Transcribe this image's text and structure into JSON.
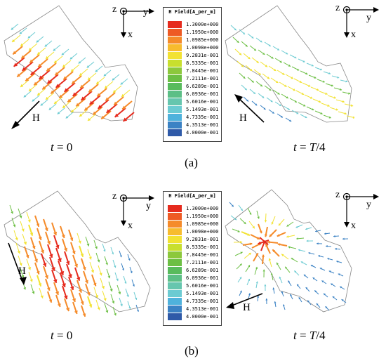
{
  "legend": {
    "title": "H Field[A_per_m]",
    "entries": [
      {
        "label": "1.3000e+000",
        "color": "#e62b1e"
      },
      {
        "label": "1.1950e+000",
        "color": "#ee5a24"
      },
      {
        "label": "1.0985e+000",
        "color": "#f58b2a"
      },
      {
        "label": "1.0098e+000",
        "color": "#f7bc2e"
      },
      {
        "label": "9.2831e-001",
        "color": "#f2e232"
      },
      {
        "label": "8.5335e-001",
        "color": "#c8df2e"
      },
      {
        "label": "7.8445e-001",
        "color": "#8cc83c"
      },
      {
        "label": "7.2111e-001",
        "color": "#6cbf44"
      },
      {
        "label": "6.6289e-001",
        "color": "#58bb5c"
      },
      {
        "label": "6.0936e-001",
        "color": "#5cbf86"
      },
      {
        "label": "5.6016e-001",
        "color": "#66c6ae"
      },
      {
        "label": "5.1493e-001",
        "color": "#6ccbd2"
      },
      {
        "label": "4.7335e-001",
        "color": "#4fb2dc"
      },
      {
        "label": "4.3513e-001",
        "color": "#3b82c4"
      },
      {
        "label": "4.0000e-001",
        "color": "#2f5aa8"
      }
    ]
  },
  "axes": {
    "z": "z",
    "y": "y",
    "x": "x"
  },
  "field_label": "H",
  "panels": {
    "a": {
      "label": "(a)",
      "left_caption_italic": "t",
      "left_caption_rest": " = 0",
      "right_caption_italic_1": "t",
      "right_caption_mid": " = ",
      "right_caption_italic_2": "T",
      "right_caption_rest": "/4"
    },
    "b": {
      "label": "(b)",
      "left_caption_italic": "t",
      "left_caption_rest": " = 0",
      "right_caption_italic_1": "t",
      "right_caption_mid": " = ",
      "right_caption_italic_2": "T",
      "right_caption_rest": "/4"
    }
  },
  "colors": {
    "strong": "#e62b1e",
    "orange": "#f58b2a",
    "yellow": "#f2e232",
    "green": "#6cbf44",
    "cyan": "#6ccbd2",
    "blue": "#3b82c4",
    "outline": "#888888"
  }
}
